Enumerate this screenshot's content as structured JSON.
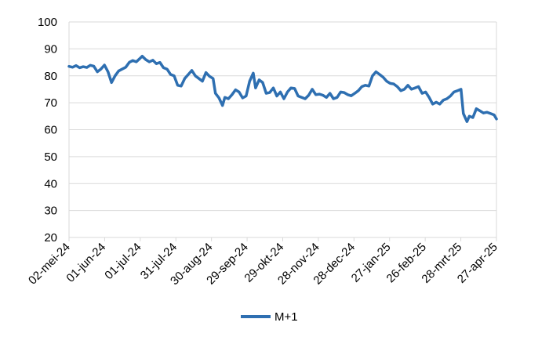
{
  "chart_data": {
    "type": "line",
    "title": "",
    "xlabel": "",
    "ylabel": "",
    "ylim": [
      20,
      100
    ],
    "y_ticks": [
      20,
      30,
      40,
      50,
      60,
      70,
      80,
      90,
      100
    ],
    "x_tick_labels": [
      "02-mei-24",
      "01-jun-24",
      "01-jul-24",
      "31-jul-24",
      "30-aug-24",
      "29-sep-24",
      "29-okt-24",
      "28-nov-24",
      "28-dec-24",
      "27-jan-25",
      "26-feb-25",
      "28-mrt-25",
      "27-apr-25"
    ],
    "grid": "horizontal",
    "legend_position": "bottom",
    "colors": {
      "series": "#2e6fb1",
      "grid": "#d9d9d9",
      "axis": "#d9d9d9"
    },
    "series": [
      {
        "name": "M+1",
        "points": [
          [
            "2024-05-02",
            83.5
          ],
          [
            "2024-05-05",
            83.2
          ],
          [
            "2024-05-08",
            83.8
          ],
          [
            "2024-05-11",
            83.0
          ],
          [
            "2024-05-14",
            83.4
          ],
          [
            "2024-05-17",
            83.1
          ],
          [
            "2024-05-20",
            83.9
          ],
          [
            "2024-05-23",
            83.6
          ],
          [
            "2024-05-26",
            81.5
          ],
          [
            "2024-05-29",
            82.5
          ],
          [
            "2024-06-01",
            84.0
          ],
          [
            "2024-06-04",
            81.5
          ],
          [
            "2024-06-07",
            77.5
          ],
          [
            "2024-06-10",
            80.0
          ],
          [
            "2024-06-13",
            81.8
          ],
          [
            "2024-06-16",
            82.5
          ],
          [
            "2024-06-19",
            83.2
          ],
          [
            "2024-06-22",
            85.0
          ],
          [
            "2024-06-25",
            85.7
          ],
          [
            "2024-06-28",
            85.2
          ],
          [
            "2024-07-01",
            86.4
          ],
          [
            "2024-07-03",
            87.3
          ],
          [
            "2024-07-06",
            86.0
          ],
          [
            "2024-07-09",
            85.2
          ],
          [
            "2024-07-12",
            85.8
          ],
          [
            "2024-07-15",
            84.5
          ],
          [
            "2024-07-18",
            85.0
          ],
          [
            "2024-07-21",
            83.0
          ],
          [
            "2024-07-24",
            82.5
          ],
          [
            "2024-07-27",
            80.5
          ],
          [
            "2024-07-30",
            80.0
          ],
          [
            "2024-08-02",
            76.5
          ],
          [
            "2024-08-05",
            76.2
          ],
          [
            "2024-08-08",
            79.0
          ],
          [
            "2024-08-11",
            80.5
          ],
          [
            "2024-08-14",
            82.0
          ],
          [
            "2024-08-17",
            80.0
          ],
          [
            "2024-08-20",
            79.0
          ],
          [
            "2024-08-23",
            78.0
          ],
          [
            "2024-08-26",
            81.2
          ],
          [
            "2024-08-29",
            79.8
          ],
          [
            "2024-09-01",
            79.0
          ],
          [
            "2024-09-03",
            73.5
          ],
          [
            "2024-09-06",
            71.8
          ],
          [
            "2024-09-09",
            69.0
          ],
          [
            "2024-09-11",
            72.0
          ],
          [
            "2024-09-14",
            71.5
          ],
          [
            "2024-09-17",
            73.0
          ],
          [
            "2024-09-20",
            74.8
          ],
          [
            "2024-09-23",
            74.0
          ],
          [
            "2024-09-26",
            71.8
          ],
          [
            "2024-09-29",
            72.5
          ],
          [
            "2024-10-02",
            78.0
          ],
          [
            "2024-10-05",
            81.0
          ],
          [
            "2024-10-07",
            75.5
          ],
          [
            "2024-10-10",
            78.5
          ],
          [
            "2024-10-13",
            77.5
          ],
          [
            "2024-10-16",
            73.5
          ],
          [
            "2024-10-19",
            73.8
          ],
          [
            "2024-10-22",
            75.5
          ],
          [
            "2024-10-25",
            72.5
          ],
          [
            "2024-10-28",
            74.0
          ],
          [
            "2024-10-31",
            71.5
          ],
          [
            "2024-11-03",
            74.0
          ],
          [
            "2024-11-06",
            75.5
          ],
          [
            "2024-11-09",
            75.3
          ],
          [
            "2024-11-12",
            72.5
          ],
          [
            "2024-11-15",
            72.0
          ],
          [
            "2024-11-18",
            71.5
          ],
          [
            "2024-11-21",
            72.8
          ],
          [
            "2024-11-24",
            75.0
          ],
          [
            "2024-11-27",
            73.0
          ],
          [
            "2024-11-30",
            73.2
          ],
          [
            "2024-12-03",
            72.8
          ],
          [
            "2024-12-06",
            72.0
          ],
          [
            "2024-12-09",
            73.5
          ],
          [
            "2024-12-12",
            71.5
          ],
          [
            "2024-12-15",
            72.0
          ],
          [
            "2024-12-18",
            74.0
          ],
          [
            "2024-12-21",
            73.8
          ],
          [
            "2024-12-24",
            73.0
          ],
          [
            "2024-12-27",
            72.6
          ],
          [
            "2024-12-30",
            73.5
          ],
          [
            "2025-01-02",
            74.5
          ],
          [
            "2025-01-05",
            76.0
          ],
          [
            "2025-01-08",
            76.5
          ],
          [
            "2025-01-11",
            76.2
          ],
          [
            "2025-01-14",
            80.0
          ],
          [
            "2025-01-17",
            81.5
          ],
          [
            "2025-01-20",
            80.5
          ],
          [
            "2025-01-23",
            79.5
          ],
          [
            "2025-01-26",
            78.0
          ],
          [
            "2025-01-29",
            77.2
          ],
          [
            "2025-02-01",
            77.0
          ],
          [
            "2025-02-04",
            76.0
          ],
          [
            "2025-02-07",
            74.5
          ],
          [
            "2025-02-10",
            75.0
          ],
          [
            "2025-02-13",
            76.5
          ],
          [
            "2025-02-16",
            75.0
          ],
          [
            "2025-02-19",
            75.5
          ],
          [
            "2025-02-22",
            76.0
          ],
          [
            "2025-02-25",
            73.5
          ],
          [
            "2025-02-28",
            74.0
          ],
          [
            "2025-03-03",
            72.0
          ],
          [
            "2025-03-06",
            69.5
          ],
          [
            "2025-03-09",
            70.2
          ],
          [
            "2025-03-12",
            69.5
          ],
          [
            "2025-03-15",
            71.0
          ],
          [
            "2025-03-18",
            71.5
          ],
          [
            "2025-03-21",
            72.5
          ],
          [
            "2025-03-24",
            74.0
          ],
          [
            "2025-03-27",
            74.5
          ],
          [
            "2025-03-30",
            75.0
          ],
          [
            "2025-04-01",
            66.0
          ],
          [
            "2025-04-04",
            63.0
          ],
          [
            "2025-04-06",
            65.0
          ],
          [
            "2025-04-09",
            64.5
          ],
          [
            "2025-04-12",
            67.8
          ],
          [
            "2025-04-15",
            67.0
          ],
          [
            "2025-04-18",
            66.2
          ],
          [
            "2025-04-21",
            66.5
          ],
          [
            "2025-04-24",
            66.0
          ],
          [
            "2025-04-27",
            65.5
          ],
          [
            "2025-04-29",
            64.0
          ]
        ]
      }
    ]
  }
}
